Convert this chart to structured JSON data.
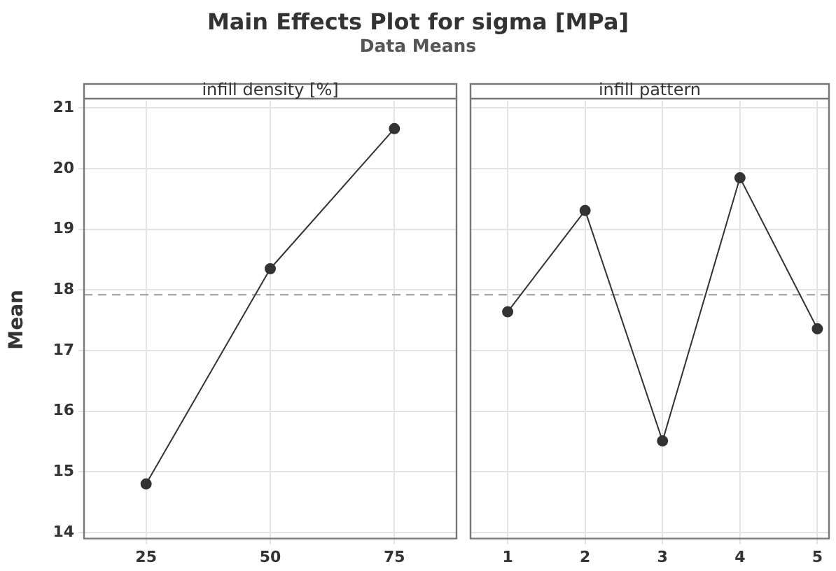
{
  "chart_data": [
    {
      "type": "line",
      "title": "Main Effects Plot for sigma [MPa]",
      "subtitle": "Data Means",
      "xlabel": "infill density [%]",
      "ylabel": "Mean",
      "x": [
        25,
        50,
        75
      ],
      "xlim": [
        12.5,
        87.5
      ],
      "xticks": [
        25,
        50,
        75
      ],
      "ylim": [
        13.9,
        21.12
      ],
      "yticks": [
        14,
        15,
        16,
        17,
        18,
        19,
        20,
        21
      ],
      "series": [
        {
          "color": "#333333",
          "values": [
            14.8,
            18.35,
            20.66
          ]
        }
      ],
      "ref_lines": [
        {
          "axis": "y",
          "value": 17.92,
          "color": "#999999",
          "line_style": "dashed"
        }
      ],
      "grid": true,
      "legend": false,
      "marker": "circle",
      "line_style": "solid"
    },
    {
      "type": "line",
      "xlabel": "infill pattern",
      "x": [
        1,
        2,
        3,
        4,
        5
      ],
      "xlim": [
        0.52,
        5.15
      ],
      "xticks": [
        1,
        2,
        3,
        4,
        5
      ],
      "ylim": [
        13.9,
        21.12
      ],
      "yticks": [
        14,
        15,
        16,
        17,
        18,
        19,
        20,
        21
      ],
      "tick_labels": "x",
      "series": [
        {
          "color": "#333333",
          "values": [
            17.64,
            19.31,
            15.51,
            19.85,
            17.36
          ]
        }
      ],
      "ref_lines": [
        {
          "axis": "y",
          "value": 17.92,
          "color": "#999999",
          "line_style": "dashed"
        }
      ],
      "grid": true,
      "legend": false,
      "marker": "circle",
      "line_style": "solid"
    }
  ]
}
